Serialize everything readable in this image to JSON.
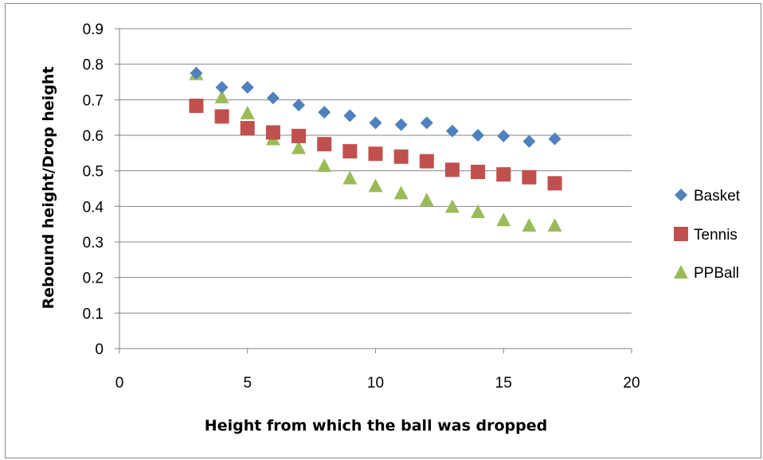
{
  "chart_data": {
    "type": "scatter",
    "title": "",
    "xlabel": "Height from which the ball was dropped",
    "ylabel": "Rebound height/Drop height",
    "xlim": [
      0,
      20
    ],
    "ylim": [
      0,
      0.9
    ],
    "xticks": [
      "0",
      "5",
      "10",
      "15",
      "20"
    ],
    "xtick_values": [
      0,
      5,
      10,
      15,
      20
    ],
    "yticks": [
      "0",
      "0.1",
      "0.2",
      "0.3",
      "0.4",
      "0.5",
      "0.6",
      "0.7",
      "0.8",
      "0.9"
    ],
    "ytick_values": [
      0,
      0.1,
      0.2,
      0.3,
      0.4,
      0.5,
      0.6,
      0.7,
      0.8,
      0.9
    ],
    "grid": "horizontal",
    "legend_position": "right",
    "series": [
      {
        "name": "Basket",
        "marker": "diamond",
        "color": "#4F81BD",
        "x": [
          3,
          4,
          5,
          6,
          7,
          8,
          9,
          10,
          11,
          12,
          13,
          14,
          15,
          16,
          17
        ],
        "y": [
          0.775,
          0.735,
          0.735,
          0.705,
          0.685,
          0.665,
          0.655,
          0.635,
          0.63,
          0.635,
          0.612,
          0.6,
          0.598,
          0.583,
          0.59
        ]
      },
      {
        "name": "Tennis",
        "marker": "square",
        "color": "#C0504D",
        "x": [
          3,
          4,
          5,
          6,
          7,
          8,
          9,
          10,
          11,
          12,
          13,
          14,
          15,
          16,
          17
        ],
        "y": [
          0.683,
          0.653,
          0.62,
          0.608,
          0.598,
          0.575,
          0.555,
          0.548,
          0.54,
          0.527,
          0.503,
          0.497,
          0.49,
          0.482,
          0.465
        ]
      },
      {
        "name": "PPBall",
        "marker": "triangle",
        "color": "#9BBB59",
        "x": [
          3,
          4,
          5,
          6,
          7,
          8,
          9,
          10,
          11,
          12,
          13,
          14,
          15,
          16,
          17
        ],
        "y": [
          0.773,
          0.708,
          0.663,
          0.59,
          0.565,
          0.515,
          0.48,
          0.458,
          0.438,
          0.418,
          0.4,
          0.385,
          0.362,
          0.347,
          0.347
        ]
      }
    ]
  }
}
